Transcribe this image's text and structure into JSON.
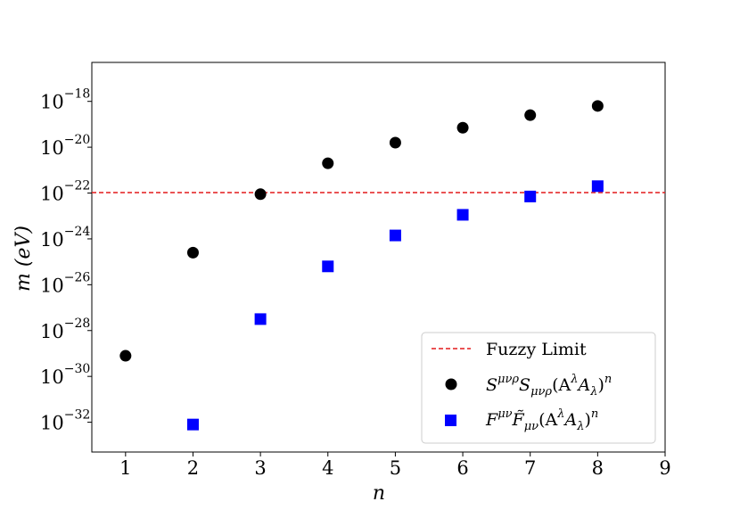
{
  "chart_data": {
    "type": "scatter",
    "title": "",
    "xlabel": "n",
    "ylabel": "m (eV)",
    "xlim": [
      0.5,
      9
    ],
    "ylim_log10": [
      -33.3,
      -16.3
    ],
    "yscale": "log",
    "x_ticks": [
      1,
      2,
      3,
      4,
      5,
      6,
      7,
      8,
      9
    ],
    "y_tick_base": "10",
    "y_tick_exponents": [
      "−32",
      "−30",
      "−28",
      "−26",
      "−24",
      "−22",
      "−20",
      "−18"
    ],
    "grid": false,
    "legend_position": "lower-right",
    "reference_line": {
      "name": "Fuzzy Limit",
      "value_log10": -21.98,
      "color": "#e41a1c",
      "style": "dashed"
    },
    "series": [
      {
        "name": "S^{μνρ}S_{μνρ}(A^λA_λ)^n",
        "legend_parts": [
          "S",
          "μνρ",
          "S",
          "μνρ",
          "(A",
          "λ",
          "A",
          "λ",
          ")",
          "n"
        ],
        "marker": "circle",
        "color": "#000000",
        "x": [
          1,
          2,
          3,
          4,
          5,
          6,
          7,
          8
        ],
        "log10_y": [
          -29.1,
          -24.6,
          -22.05,
          -20.7,
          -19.8,
          -19.15,
          -18.6,
          -18.2
        ]
      },
      {
        "name": "F^{μν}F̃_{μν}(A^λA_λ)^n",
        "legend_parts": [
          "F",
          "μν",
          "F̃",
          "μν",
          "(A",
          "λ",
          "A",
          "λ",
          ")",
          "n"
        ],
        "marker": "square",
        "color": "#0000ff",
        "x": [
          2,
          3,
          4,
          5,
          6,
          7,
          8
        ],
        "log10_y": [
          -32.1,
          -27.5,
          -25.2,
          -23.85,
          -22.95,
          -22.15,
          -21.7
        ]
      }
    ]
  }
}
